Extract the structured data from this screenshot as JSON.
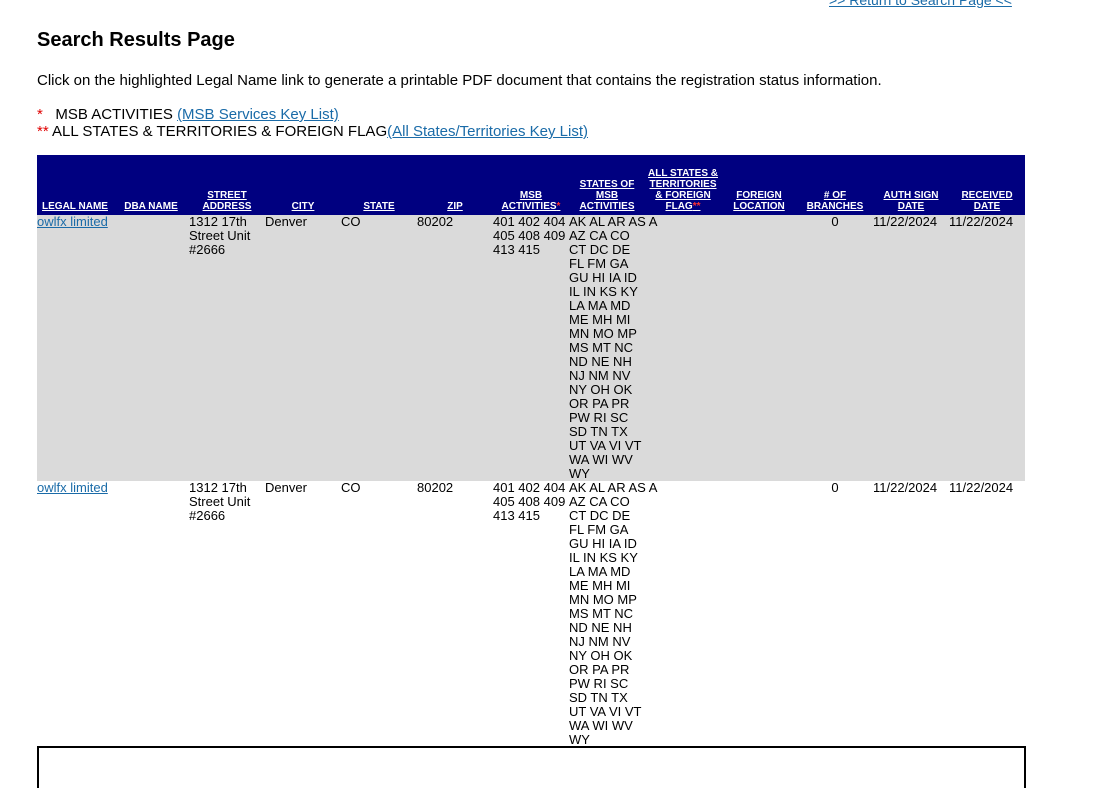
{
  "header": {
    "return_link": ">> Return to Search Page <<",
    "title": "Search Results Page",
    "instructions": "Click on the highlighted Legal Name link to generate a printable PDF document that contains the registration status information."
  },
  "keys": {
    "msb_star": "*",
    "msb_text": "MSB ACTIVITIES",
    "msb_link": "(MSB Services Key List)",
    "states_star": "**",
    "states_text": "ALL STATES & TERRITORIES & FOREIGN FLAG",
    "states_link": "(All States/Territories Key List)"
  },
  "table": {
    "headers": {
      "legal_name": "LEGAL NAME",
      "dba_name": "DBA NAME",
      "street_address": "STREET ADDRESS",
      "city": "CITY",
      "state": "STATE",
      "zip": "ZIP",
      "msb_activities": "MSB ACTIVITIES",
      "msb_star": "*",
      "states_of_msb": "STATES OF MSB ACTIVITIES",
      "all_states": "ALL STATES & TERRITORIES & FOREIGN FLAG",
      "all_states_star": "**",
      "foreign_location": "FOREIGN LOCATION",
      "branches": "# OF BRANCHES",
      "auth_sign_date": "AUTH SIGN DATE",
      "received_date": "RECEIVED DATE"
    },
    "rows": [
      {
        "legal_name": "owlfx limited",
        "dba_name": "",
        "street_address": "1312 17th Street Unit #2666",
        "city": "Denver",
        "state": "CO",
        "zip": "80202",
        "msb_activities": "401 402 404 405 408 409 413 415",
        "states": [
          "AK AL AR AS A",
          "AZ CA CO",
          "CT DC DE",
          "FL FM GA",
          "GU HI IA ID",
          "IL IN KS KY",
          "LA MA MD",
          "ME MH MI",
          "MN MO MP",
          "MS MT NC",
          "ND NE NH",
          "NJ NM NV",
          "NY OH OK",
          "OR PA PR",
          "PW RI SC",
          "SD TN TX",
          "UT VA VI VT",
          "WA WI WV",
          "WY"
        ],
        "all_states": "",
        "foreign_location": "",
        "branches": "0",
        "auth_sign_date": "11/22/2024",
        "received_date": "11/22/2024"
      },
      {
        "legal_name": "owlfx limited",
        "dba_name": "",
        "street_address": "1312 17th Street Unit #2666",
        "city": "Denver",
        "state": "CO",
        "zip": "80202",
        "msb_activities": "401 402 404 405 408 409 413 415",
        "states": [
          "AK AL AR AS A",
          "AZ CA CO",
          "CT DC DE",
          "FL FM GA",
          "GU HI IA ID",
          "IL IN KS KY",
          "LA MA MD",
          "ME MH MI",
          "MN MO MP",
          "MS MT NC",
          "ND NE NH",
          "NJ NM NV",
          "NY OH OK",
          "OR PA PR",
          "PW RI SC",
          "SD TN TX",
          "UT VA VI VT",
          "WA WI WV",
          "WY"
        ],
        "all_states": "",
        "foreign_location": "",
        "branches": "0",
        "auth_sign_date": "11/22/2024",
        "received_date": "11/22/2024"
      }
    ]
  },
  "colors": {
    "header_bg": "#000080",
    "row_shaded": "#dadada",
    "link": "#1a6ba8",
    "star": "#e00000"
  }
}
